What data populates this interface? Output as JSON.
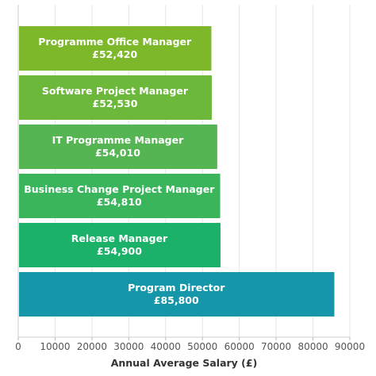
{
  "chart_data": {
    "type": "bar",
    "orientation": "horizontal",
    "title": "",
    "xlabel": "Annual Average Salary (£)",
    "ylabel": "",
    "xlim": [
      0,
      90000
    ],
    "xticks": [
      0,
      10000,
      20000,
      30000,
      40000,
      50000,
      60000,
      70000,
      80000,
      90000
    ],
    "xtick_labels": [
      "0",
      "10000",
      "20000",
      "30000",
      "40000",
      "50000",
      "60000",
      "70000",
      "80000",
      "90000"
    ],
    "grid": true,
    "legend": "none",
    "bars": [
      {
        "label": "Programme Office Manager",
        "value": 52420,
        "value_label": "£52,420",
        "color": "#7cb82a"
      },
      {
        "label": "Software Project Manager",
        "value": 52530,
        "value_label": "£52,530",
        "color": "#6cb83a"
      },
      {
        "label": "IT Programme Manager",
        "value": 54010,
        "value_label": "£54,010",
        "color": "#55b552"
      },
      {
        "label": "Business Change Project Manager",
        "value": 54810,
        "value_label": "£54,810",
        "color": "#3ab55c"
      },
      {
        "label": "Release Manager",
        "value": 54900,
        "value_label": "£54,900",
        "color": "#1bb169"
      },
      {
        "label": "Program Director",
        "value": 85800,
        "value_label": "£85,800",
        "color": "#1697a9"
      }
    ]
  }
}
